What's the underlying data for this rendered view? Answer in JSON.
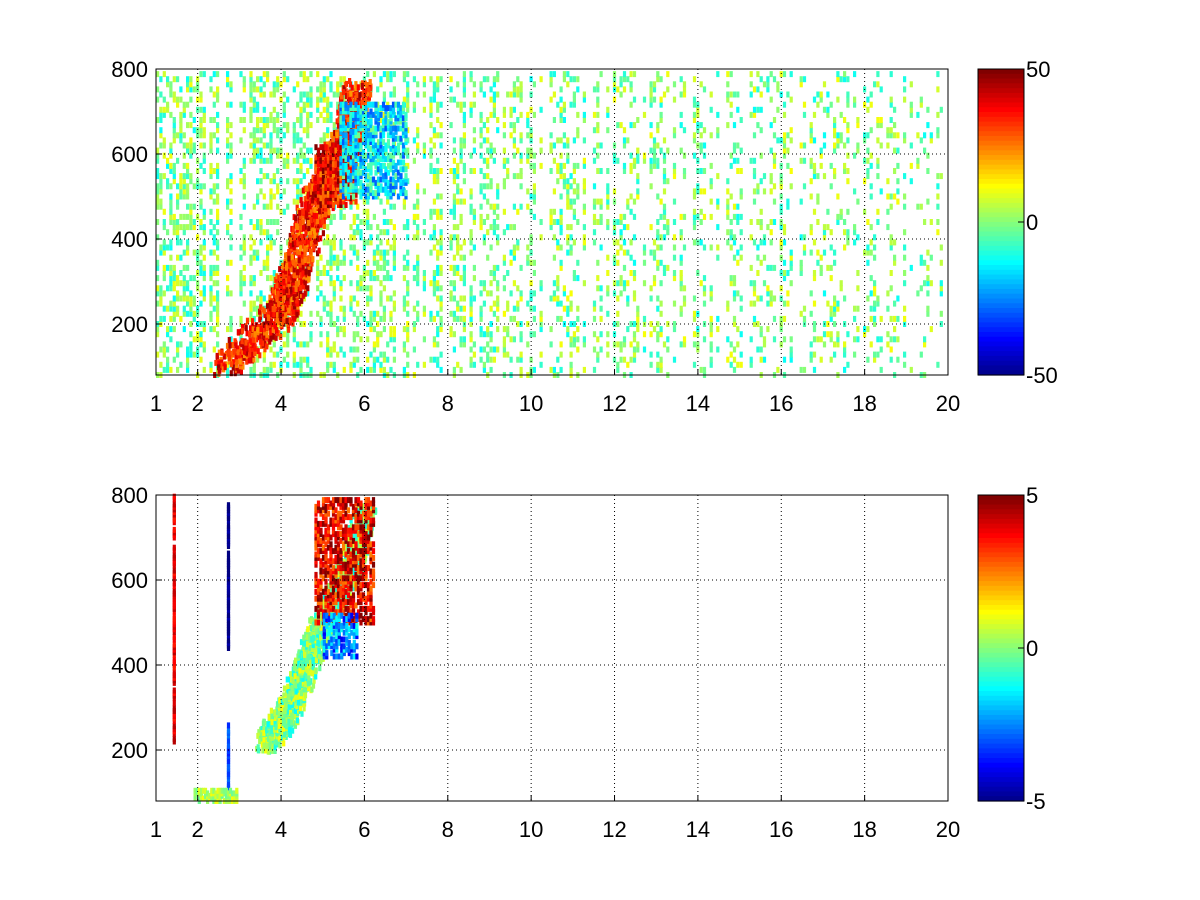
{
  "chart_data": [
    {
      "type": "heatmap",
      "title": "",
      "xlabel": "",
      "ylabel": "",
      "xlim": [
        1,
        20
      ],
      "ylim": [
        80,
        800
      ],
      "xticks": [
        "1",
        "2",
        "4",
        "6",
        "8",
        "10",
        "12",
        "14",
        "16",
        "18",
        "20"
      ],
      "yticks": [
        "200",
        "400",
        "600",
        "800"
      ],
      "grid": true,
      "colorbar": {
        "range": [
          -50,
          50
        ],
        "ticks": [
          "50",
          "0",
          "-50"
        ],
        "colormap": "jet"
      },
      "features": [
        {
          "name": "ridge",
          "points": [
            [
              2.6,
              100
            ],
            [
              3.9,
              220
            ],
            [
              4.3,
              310
            ],
            [
              4.7,
              460
            ],
            [
              5.2,
              560
            ],
            [
              5.6,
              640
            ],
            [
              5.8,
              750
            ]
          ],
          "value": 35,
          "spread": 0.35
        },
        {
          "name": "cluster-high",
          "x": [
            4.8,
            5.8
          ],
          "y": [
            480,
            620
          ],
          "value": 38
        },
        {
          "name": "cluster-low",
          "x": [
            5.4,
            7.0
          ],
          "y": [
            500,
            720
          ],
          "value": -15
        }
      ],
      "noise": {
        "x": [
          1,
          20
        ],
        "density_start": 0.8,
        "density_end": 0.3,
        "range": [
          -12,
          12
        ]
      }
    },
    {
      "type": "heatmap",
      "title": "",
      "xlabel": "",
      "ylabel": "",
      "xlim": [
        1,
        20
      ],
      "ylim": [
        80,
        800
      ],
      "xticks": [
        "1",
        "2",
        "4",
        "6",
        "8",
        "10",
        "12",
        "14",
        "16",
        "18",
        "20"
      ],
      "yticks": [
        "200",
        "400",
        "600",
        "800"
      ],
      "grid": true,
      "colorbar": {
        "range": [
          -5,
          5
        ],
        "ticks": [
          "5",
          "0",
          "-5"
        ],
        "colormap": "jet"
      },
      "features": [
        {
          "name": "ridge",
          "points": [
            [
              3.6,
              220
            ],
            [
              4.1,
              280
            ],
            [
              4.5,
              380
            ],
            [
              4.9,
              480
            ],
            [
              5.3,
              560
            ],
            [
              5.7,
              650
            ],
            [
              6.0,
              760
            ]
          ],
          "value": 0,
          "spread": 0.25
        },
        {
          "name": "cluster-high",
          "x": [
            4.8,
            6.2
          ],
          "y": [
            500,
            790
          ],
          "value": 4
        },
        {
          "name": "cluster-low",
          "x": [
            5.0,
            5.8
          ],
          "y": [
            420,
            520
          ],
          "value": -2.5
        }
      ],
      "streaks": [
        {
          "x": 1.4,
          "y": [
            220,
            800
          ],
          "value": 4
        },
        {
          "x": 2.7,
          "y": [
            440,
            780
          ],
          "value": -5
        },
        {
          "x": 2.7,
          "y": [
            90,
            270
          ],
          "value": -3
        }
      ],
      "patches": [
        {
          "x": [
            1.9,
            2.9
          ],
          "y": [
            80,
            105
          ],
          "value": 0.5
        }
      ]
    }
  ]
}
